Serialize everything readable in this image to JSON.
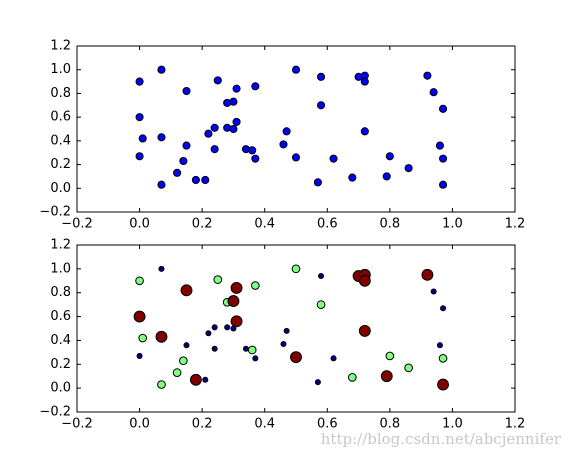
{
  "chart_data": [
    {
      "type": "scatter",
      "xlim": [
        -0.2,
        1.2
      ],
      "ylim": [
        -0.2,
        1.2
      ],
      "xticks": [
        {
          "value": -0.2,
          "label": "−0.2"
        },
        {
          "value": 0,
          "label": "0.0"
        },
        {
          "value": 0.2,
          "label": "0.2"
        },
        {
          "value": 0.4,
          "label": "0.4"
        },
        {
          "value": 0.6,
          "label": "0.6"
        },
        {
          "value": 0.8,
          "label": "0.8"
        },
        {
          "value": 1,
          "label": "1.0"
        },
        {
          "value": 1.2,
          "label": "1.2"
        }
      ],
      "yticks": [
        {
          "value": -0.2,
          "label": "−0.2"
        },
        {
          "value": 0,
          "label": "0.0"
        },
        {
          "value": 0.2,
          "label": "0.2"
        },
        {
          "value": 0.4,
          "label": "0.4"
        },
        {
          "value": 0.6,
          "label": "0.6"
        },
        {
          "value": 0.8,
          "label": "0.8"
        },
        {
          "value": 1,
          "label": "1.0"
        },
        {
          "value": 1.2,
          "label": "1.2"
        }
      ],
      "series": [
        {
          "color": "#0000ff",
          "size": 30,
          "x": [
            0.0,
            0.07,
            0.0,
            0.01,
            0.0,
            0.07,
            0.07,
            0.12,
            0.14,
            0.15,
            0.15,
            0.18,
            0.21,
            0.22,
            0.24,
            0.24,
            0.25,
            0.28,
            0.3,
            0.28,
            0.3,
            0.31,
            0.31,
            0.34,
            0.36,
            0.37,
            0.37,
            0.46,
            0.47,
            0.5,
            0.5,
            0.58,
            0.58,
            0.57,
            0.62,
            0.68,
            0.7,
            0.72,
            0.72,
            0.72,
            0.8,
            0.79,
            0.86,
            0.92,
            0.94,
            0.96,
            0.97,
            0.97,
            0.97
          ],
          "y": [
            0.9,
            1.0,
            0.6,
            0.42,
            0.27,
            0.43,
            0.03,
            0.13,
            0.23,
            0.36,
            0.82,
            0.07,
            0.07,
            0.46,
            0.51,
            0.33,
            0.91,
            0.72,
            0.73,
            0.51,
            0.5,
            0.84,
            0.56,
            0.33,
            0.32,
            0.86,
            0.25,
            0.37,
            0.48,
            1.0,
            0.26,
            0.7,
            0.94,
            0.05,
            0.25,
            0.09,
            0.94,
            0.95,
            0.9,
            0.48,
            0.27,
            0.1,
            0.17,
            0.95,
            0.81,
            0.36,
            0.25,
            0.67,
            0.03
          ]
        }
      ]
    },
    {
      "type": "scatter",
      "xlim": [
        -0.2,
        1.2
      ],
      "ylim": [
        -0.2,
        1.2
      ],
      "xticks": [
        {
          "value": -0.2,
          "label": "−0.2"
        },
        {
          "value": 0,
          "label": "0.0"
        },
        {
          "value": 0.2,
          "label": "0.2"
        },
        {
          "value": 0.4,
          "label": "0.4"
        },
        {
          "value": 0.6,
          "label": "0.6"
        },
        {
          "value": 0.8,
          "label": "0.8"
        },
        {
          "value": 1,
          "label": "1.0"
        },
        {
          "value": 1.2,
          "label": "1.2"
        }
      ],
      "yticks": [
        {
          "value": -0.2,
          "label": "−0.2"
        },
        {
          "value": 0,
          "label": "0.0"
        },
        {
          "value": 0.2,
          "label": "0.2"
        },
        {
          "value": 0.4,
          "label": "0.4"
        },
        {
          "value": 0.6,
          "label": "0.6"
        },
        {
          "value": 0.8,
          "label": "0.8"
        },
        {
          "value": 1,
          "label": "1.0"
        },
        {
          "value": 1.2,
          "label": "1.2"
        }
      ],
      "series": [
        {
          "color": "#000080",
          "size": 15,
          "x": [
            0.07,
            0.0,
            0.15,
            0.21,
            0.22,
            0.24,
            0.24,
            0.3,
            0.28,
            0.34,
            0.37,
            0.46,
            0.47,
            0.58,
            0.57,
            0.62,
            0.94,
            0.96,
            0.97
          ],
          "y": [
            1.0,
            0.27,
            0.36,
            0.07,
            0.46,
            0.51,
            0.33,
            0.5,
            0.51,
            0.33,
            0.25,
            0.37,
            0.48,
            0.94,
            0.05,
            0.25,
            0.81,
            0.36,
            0.67
          ]
        },
        {
          "color": "#80ff80",
          "size": 35,
          "x": [
            0.0,
            0.01,
            0.07,
            0.12,
            0.14,
            0.25,
            0.28,
            0.36,
            0.37,
            0.5,
            0.58,
            0.68,
            0.8,
            0.86,
            0.97
          ],
          "y": [
            0.9,
            0.42,
            0.03,
            0.13,
            0.23,
            0.91,
            0.72,
            0.32,
            0.86,
            1.0,
            0.7,
            0.09,
            0.27,
            0.17,
            0.25
          ]
        },
        {
          "color": "#800000",
          "size": 70,
          "x": [
            0.0,
            0.07,
            0.15,
            0.18,
            0.3,
            0.31,
            0.31,
            0.5,
            0.7,
            0.72,
            0.72,
            0.72,
            0.79,
            0.92,
            0.97
          ],
          "y": [
            0.6,
            0.43,
            0.82,
            0.07,
            0.73,
            0.84,
            0.56,
            0.26,
            0.94,
            0.95,
            0.9,
            0.48,
            0.1,
            0.95,
            0.03
          ]
        }
      ]
    }
  ],
  "watermark": "http://blog.csdn.net/abcjennifer"
}
